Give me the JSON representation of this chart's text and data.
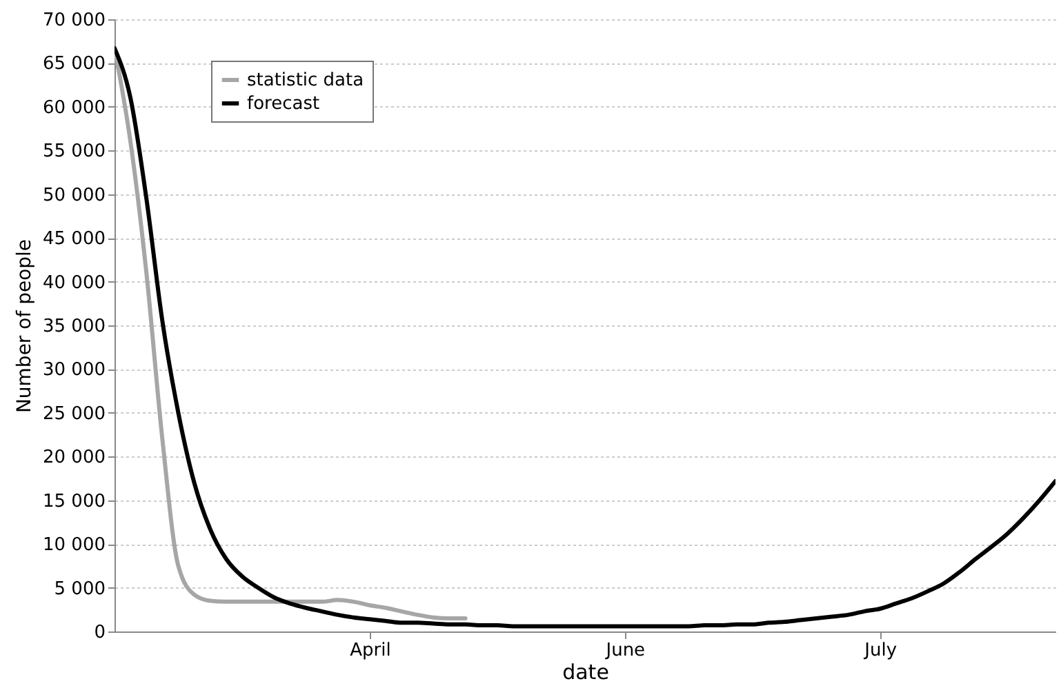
{
  "chart_data": {
    "type": "line",
    "xlabel": "date",
    "ylabel": "Number of people",
    "categories": [
      null,
      null,
      null,
      null,
      null,
      null,
      null,
      null,
      null,
      null,
      null,
      null,
      null,
      null,
      null,
      null,
      "April",
      null,
      null,
      null,
      null,
      null,
      null,
      null,
      null,
      null,
      null,
      null,
      null,
      null,
      null,
      null,
      "June",
      null,
      null,
      null,
      null,
      null,
      null,
      null,
      null,
      null,
      null,
      null,
      null,
      null,
      null,
      null,
      "July",
      null,
      null,
      null,
      null,
      null,
      null,
      null,
      null,
      null,
      null,
      null
    ],
    "ylim": [
      0,
      70000
    ],
    "yticks": [
      {
        "value": 0,
        "label": "0"
      },
      {
        "value": 5000,
        "label": "5 000"
      },
      {
        "value": 10000,
        "label": "10 000"
      },
      {
        "value": 15000,
        "label": "15 000"
      },
      {
        "value": 20000,
        "label": "20 000"
      },
      {
        "value": 25000,
        "label": "25 000"
      },
      {
        "value": 30000,
        "label": "30 000"
      },
      {
        "value": 35000,
        "label": "35 000"
      },
      {
        "value": 40000,
        "label": "40 000"
      },
      {
        "value": 45000,
        "label": "45 000"
      },
      {
        "value": 50000,
        "label": "50 000"
      },
      {
        "value": 55000,
        "label": "55 000"
      },
      {
        "value": 60000,
        "label": "60 000"
      },
      {
        "value": 65000,
        "label": "65 000"
      },
      {
        "value": 70000,
        "label": "70 000"
      }
    ],
    "grid": "y",
    "legend": "top left",
    "line_style": "solid",
    "marker": "none",
    "series": [
      {
        "name": "statistic data",
        "color": "#a6a6a6",
        "values": [
          66700,
          56000,
          41000,
          22000,
          7500,
          4200,
          3500,
          3400,
          3400,
          3400,
          3400,
          3400,
          3400,
          3400,
          3600,
          3400,
          3000,
          2700,
          2300,
          1900,
          1600,
          1500,
          1500,
          null,
          null,
          null,
          null,
          null,
          null,
          null,
          null,
          null,
          null,
          null,
          null,
          null,
          null,
          null,
          null,
          null,
          null,
          null,
          null,
          null,
          null,
          null,
          null,
          null,
          null,
          null,
          null,
          null,
          null,
          null,
          null,
          null,
          null,
          null,
          null,
          null
        ]
      },
      {
        "name": "forecast",
        "color": "#000000",
        "values": [
          66700,
          61000,
          49500,
          35500,
          25000,
          17000,
          11700,
          8300,
          6300,
          5000,
          3900,
          3200,
          2700,
          2300,
          1900,
          1600,
          1400,
          1200,
          1000,
          1000,
          900,
          800,
          800,
          700,
          700,
          600,
          600,
          600,
          600,
          600,
          600,
          600,
          600,
          600,
          600,
          600,
          600,
          700,
          700,
          800,
          800,
          1000,
          1100,
          1300,
          1500,
          1700,
          1900,
          2300,
          2600,
          3200,
          3800,
          4600,
          5500,
          6800,
          8300,
          9700,
          11200,
          13000,
          15000,
          17200
        ]
      }
    ]
  }
}
